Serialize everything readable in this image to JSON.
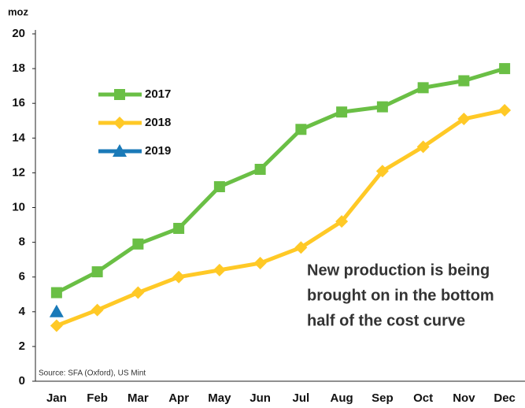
{
  "chart_data": {
    "type": "line",
    "y_label": "moz",
    "categories": [
      "Jan",
      "Feb",
      "Mar",
      "Apr",
      "May",
      "Jun",
      "Jul",
      "Aug",
      "Sep",
      "Oct",
      "Nov",
      "Dec"
    ],
    "series": [
      {
        "name": "2017",
        "color": "#6abf45",
        "marker": "square",
        "values": [
          5.1,
          6.3,
          7.9,
          8.8,
          11.2,
          12.2,
          14.5,
          15.5,
          15.8,
          16.9,
          17.3,
          18.0
        ]
      },
      {
        "name": "2018",
        "color": "#ffc926",
        "marker": "diamond",
        "values": [
          3.2,
          4.1,
          5.1,
          6.0,
          6.4,
          6.8,
          7.7,
          9.2,
          12.1,
          13.5,
          15.1,
          15.6
        ]
      },
      {
        "name": "2019",
        "color": "#1a7ab8",
        "marker": "triangle",
        "values": [
          4.0,
          null,
          null,
          null,
          null,
          null,
          null,
          null,
          null,
          null,
          null,
          null
        ]
      }
    ],
    "ylim": [
      0,
      20
    ],
    "yticks": [
      0,
      2,
      4,
      6,
      8,
      10,
      12,
      14,
      16,
      18,
      20
    ],
    "annotation": [
      "New production is being",
      "brought on in the bottom",
      "half of the cost curve"
    ],
    "source": "Source: SFA (Oxford), US Mint"
  }
}
